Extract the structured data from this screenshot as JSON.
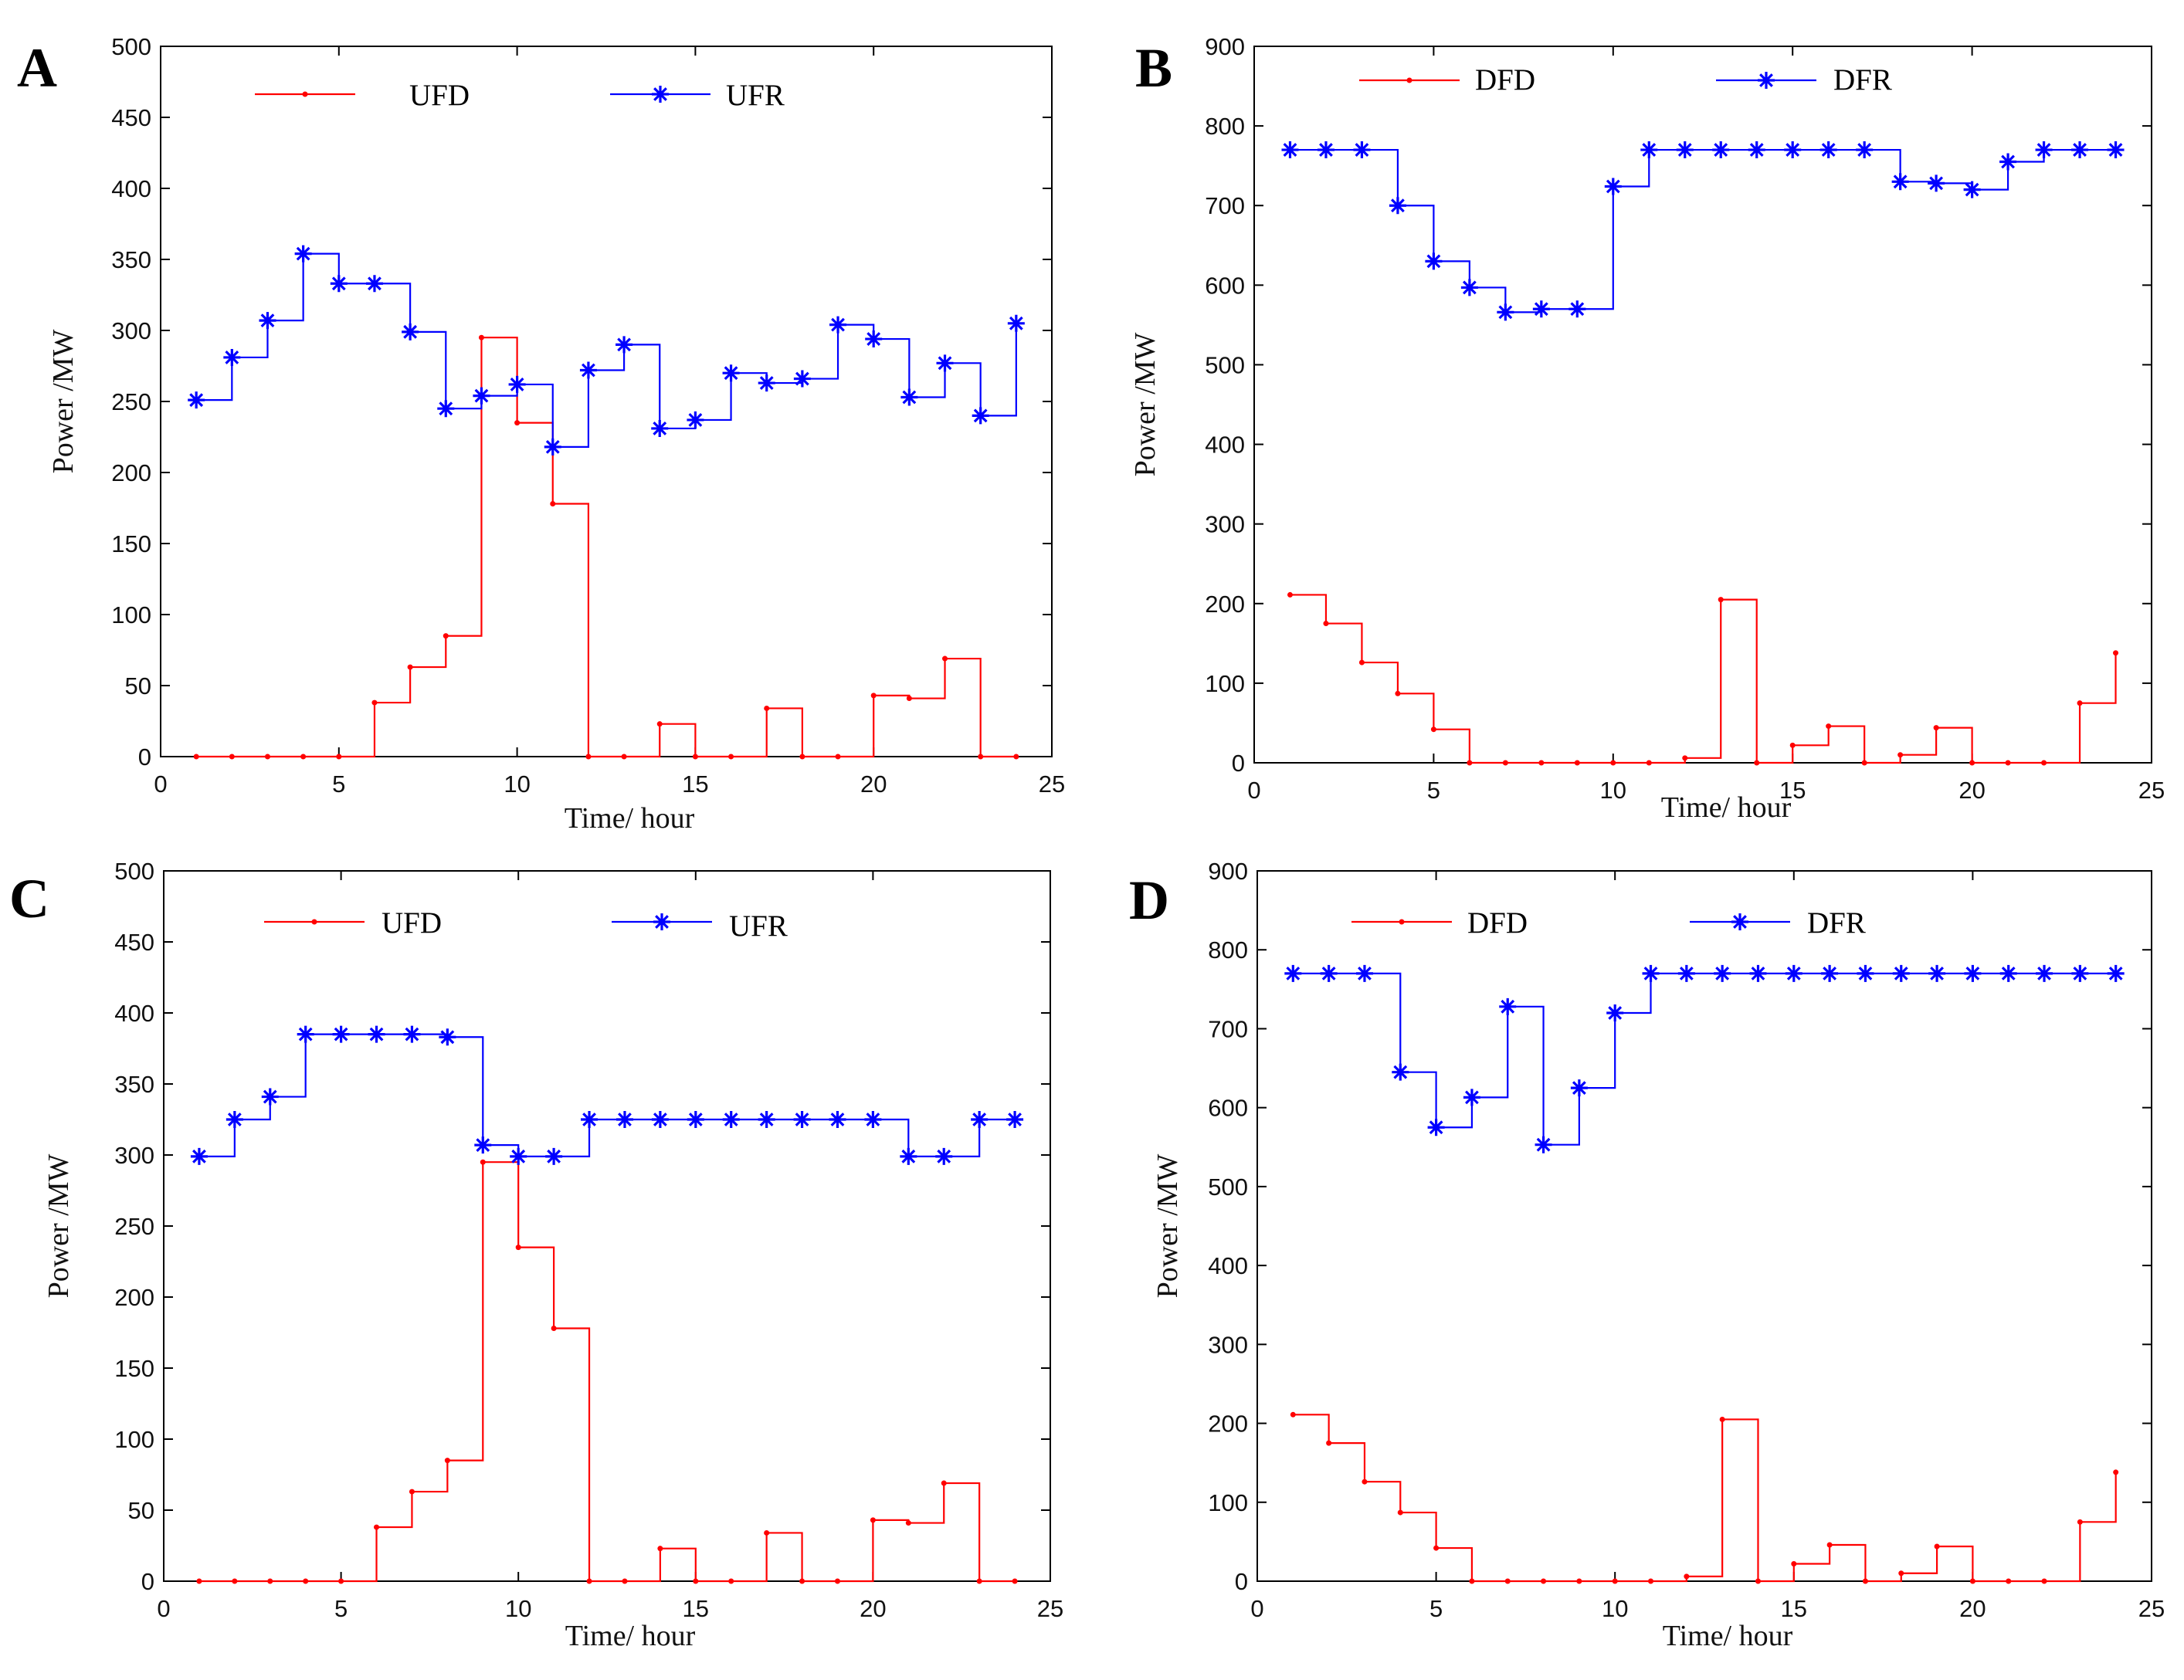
{
  "figure": {
    "panels": [
      {
        "id": "A",
        "letter": "A",
        "ylim": [
          0,
          500
        ],
        "yticks": [
          0,
          50,
          100,
          150,
          200,
          250,
          300,
          350,
          400,
          450,
          500
        ],
        "xlabel": "Time/ hour",
        "ylabel": "Power /MW"
      },
      {
        "id": "B",
        "letter": "B",
        "ylim": [
          0,
          900
        ],
        "yticks": [
          0,
          100,
          200,
          300,
          400,
          500,
          600,
          700,
          800,
          900
        ],
        "xlabel": "Time/ hour",
        "ylabel": "Power /MW"
      },
      {
        "id": "C",
        "letter": "C",
        "ylim": [
          0,
          500
        ],
        "yticks": [
          0,
          50,
          100,
          150,
          200,
          250,
          300,
          350,
          400,
          450,
          500
        ],
        "xlabel": "Time/ hour",
        "ylabel": "Power /MW"
      },
      {
        "id": "D",
        "letter": "D",
        "ylim": [
          0,
          900
        ],
        "yticks": [
          0,
          100,
          200,
          300,
          400,
          500,
          600,
          700,
          800,
          900
        ],
        "xlabel": "Time/ hour",
        "ylabel": "Power /MW"
      }
    ]
  },
  "chart_data": [
    {
      "type": "line",
      "panel": "A",
      "title": "",
      "xlabel": "Time/ hour",
      "ylabel": "Power /MW",
      "xlim": [
        0,
        25
      ],
      "ylim": [
        0,
        500
      ],
      "xticks": [
        0,
        5,
        10,
        15,
        20,
        25
      ],
      "yticks": [
        0,
        50,
        100,
        150,
        200,
        250,
        300,
        350,
        400,
        450,
        500
      ],
      "legend_position": "top",
      "x": [
        1,
        2,
        3,
        4,
        5,
        6,
        7,
        8,
        9,
        10,
        11,
        12,
        13,
        14,
        15,
        16,
        17,
        18,
        19,
        20,
        21,
        22,
        23,
        24
      ],
      "series": [
        {
          "name": "UFD",
          "color": "#ff0000",
          "marker": "dot",
          "values": [
            0,
            0,
            0,
            0,
            0,
            38,
            63,
            85,
            295,
            235,
            178,
            0,
            0,
            23,
            0,
            0,
            34,
            0,
            0,
            43,
            41,
            69,
            0,
            0
          ]
        },
        {
          "name": "UFR",
          "color": "#0000ff",
          "marker": "star",
          "values": [
            251,
            281,
            307,
            354,
            333,
            333,
            299,
            245,
            254,
            262,
            218,
            272,
            290,
            231,
            237,
            270,
            263,
            266,
            304,
            294,
            253,
            277,
            240,
            305
          ]
        }
      ]
    },
    {
      "type": "line",
      "panel": "B",
      "title": "",
      "xlabel": "Time/ hour",
      "ylabel": "Power /MW",
      "xlim": [
        0,
        25
      ],
      "ylim": [
        0,
        900
      ],
      "xticks": [
        0,
        5,
        10,
        15,
        20,
        25
      ],
      "yticks": [
        0,
        100,
        200,
        300,
        400,
        500,
        600,
        700,
        800,
        900
      ],
      "legend_position": "top",
      "x": [
        1,
        2,
        3,
        4,
        5,
        6,
        7,
        8,
        9,
        10,
        11,
        12,
        13,
        14,
        15,
        16,
        17,
        18,
        19,
        20,
        21,
        22,
        23,
        24
      ],
      "series": [
        {
          "name": "DFD",
          "color": "#ff0000",
          "marker": "dot",
          "values": [
            211,
            175,
            126,
            87,
            42,
            0,
            0,
            0,
            0,
            0,
            0,
            6,
            205,
            0,
            22,
            46,
            0,
            10,
            44,
            0,
            0,
            0,
            75,
            138
          ]
        },
        {
          "name": "DFR",
          "color": "#0000ff",
          "marker": "star",
          "values": [
            770,
            770,
            770,
            700,
            630,
            597,
            566,
            570,
            570,
            724,
            770,
            770,
            770,
            770,
            770,
            770,
            770,
            730,
            728,
            720,
            755,
            770,
            770,
            770
          ]
        }
      ]
    },
    {
      "type": "line",
      "panel": "C",
      "title": "",
      "xlabel": "Time/ hour",
      "ylabel": "Power /MW",
      "xlim": [
        0,
        25
      ],
      "ylim": [
        0,
        500
      ],
      "xticks": [
        0,
        5,
        10,
        15,
        20,
        25
      ],
      "yticks": [
        0,
        50,
        100,
        150,
        200,
        250,
        300,
        350,
        400,
        450,
        500
      ],
      "legend_position": "top",
      "x": [
        1,
        2,
        3,
        4,
        5,
        6,
        7,
        8,
        9,
        10,
        11,
        12,
        13,
        14,
        15,
        16,
        17,
        18,
        19,
        20,
        21,
        22,
        23,
        24
      ],
      "series": [
        {
          "name": "UFD",
          "color": "#ff0000",
          "marker": "dot",
          "values": [
            0,
            0,
            0,
            0,
            0,
            38,
            63,
            85,
            295,
            235,
            178,
            0,
            0,
            23,
            0,
            0,
            34,
            0,
            0,
            43,
            41,
            69,
            0,
            0
          ]
        },
        {
          "name": "UFR",
          "color": "#0000ff",
          "marker": "star",
          "values": [
            299,
            325,
            341,
            385,
            385,
            385,
            385,
            383,
            307,
            299,
            299,
            325,
            325,
            325,
            325,
            325,
            325,
            325,
            325,
            325,
            299,
            299,
            325,
            325
          ]
        }
      ]
    },
    {
      "type": "line",
      "panel": "D",
      "title": "",
      "xlabel": "Time/ hour",
      "ylabel": "Power /MW",
      "xlim": [
        0,
        25
      ],
      "ylim": [
        0,
        900
      ],
      "xticks": [
        0,
        5,
        10,
        15,
        20,
        25
      ],
      "yticks": [
        0,
        100,
        200,
        300,
        400,
        500,
        600,
        700,
        800,
        900
      ],
      "legend_position": "top",
      "x": [
        1,
        2,
        3,
        4,
        5,
        6,
        7,
        8,
        9,
        10,
        11,
        12,
        13,
        14,
        15,
        16,
        17,
        18,
        19,
        20,
        21,
        22,
        23,
        24
      ],
      "series": [
        {
          "name": "DFD",
          "color": "#ff0000",
          "marker": "dot",
          "values": [
            211,
            175,
            126,
            87,
            42,
            0,
            0,
            0,
            0,
            0,
            0,
            6,
            205,
            0,
            22,
            46,
            0,
            10,
            44,
            0,
            0,
            0,
            75,
            138
          ]
        },
        {
          "name": "DFR",
          "color": "#0000ff",
          "marker": "star",
          "values": [
            770,
            770,
            770,
            645,
            575,
            613,
            728,
            553,
            625,
            720,
            770,
            770,
            770,
            770,
            770,
            770,
            770,
            770,
            770,
            770,
            770,
            770,
            770,
            770
          ]
        }
      ]
    }
  ]
}
